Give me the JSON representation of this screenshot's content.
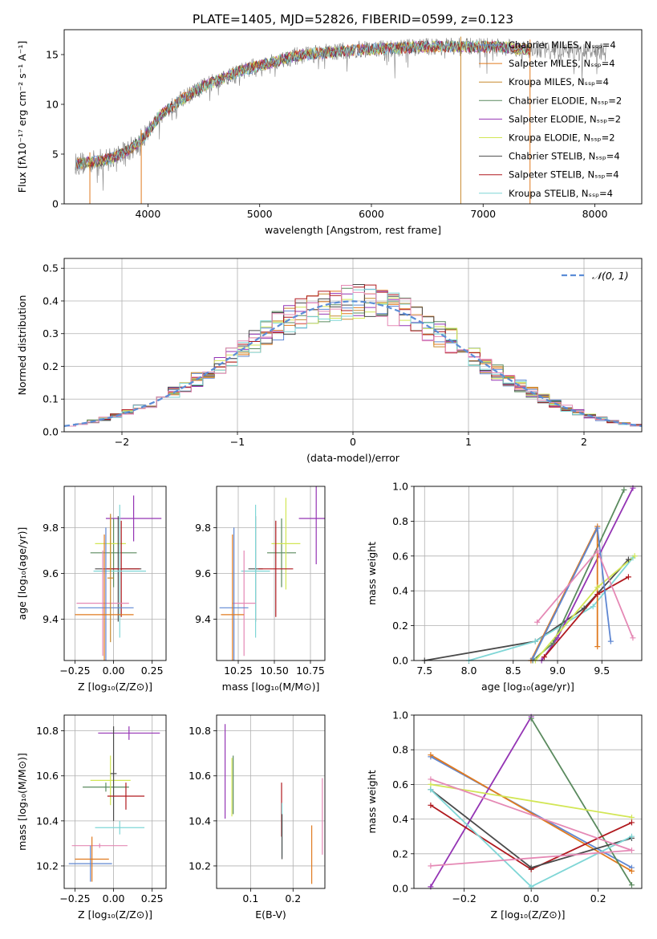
{
  "title": "PLATE=1405, MJD=52826, FIBERID=0599, z=0.123",
  "model_colors": {
    "chabrier_miles": "#5f87d2",
    "salpeter_miles": "#e07a1f",
    "kroupa_miles": "#c88a2e",
    "chabrier_elodie": "#5a8a5e",
    "salpeter_elodie": "#9434b4",
    "kroupa_elodie": "#d2e655",
    "chabrier_stelib": "#4a4a4a",
    "salpeter_stelib": "#b0191e",
    "kroupa_stelib": "#7fd6d6",
    "extra_pink": "#e589b5",
    "data_gray": "#808080"
  },
  "chart_data": [
    {
      "id": "spectrum",
      "type": "line",
      "xlabel": "wavelength [Angstrom, rest frame]",
      "ylabel": "Flux [fλ10⁻¹⁷ erg cm⁻² s⁻¹ A⁻¹]",
      "xlim": [
        3250,
        8420
      ],
      "ylim": [
        0,
        17.5
      ],
      "xticks": [
        4000,
        5000,
        6000,
        7000,
        8000
      ],
      "yticks": [
        0,
        5,
        10,
        15
      ],
      "grid": false,
      "legend_placement": "upper-right",
      "legend": [
        "Chabrier MILES, Nₛₛₚ=4",
        "Salpeter MILES, Nₛₛₚ=4",
        "Kroupa MILES, Nₛₛₚ=4",
        "Chabrier ELODIE, Nₛₛₚ=2",
        "Salpeter ELODIE, Nₛₛₚ=2",
        "Kroupa ELODIE, Nₛₛₚ=2",
        "Chabrier STELIB, Nₛₛₚ=4",
        "Salpeter STELIB, Nₛₛₚ=4",
        "Kroupa STELIB, Nₛₛₚ=4"
      ],
      "continuum": [
        [
          3350,
          4.0
        ],
        [
          3500,
          4.2
        ],
        [
          3650,
          4.5
        ],
        [
          3800,
          5.2
        ],
        [
          3950,
          6.5
        ],
        [
          4100,
          8.8
        ],
        [
          4300,
          10.5
        ],
        [
          4500,
          11.8
        ],
        [
          4700,
          12.8
        ],
        [
          4900,
          13.6
        ],
        [
          5100,
          14.2
        ],
        [
          5300,
          14.8
        ],
        [
          5500,
          15.1
        ],
        [
          5700,
          15.3
        ],
        [
          5900,
          15.5
        ],
        [
          6100,
          15.6
        ],
        [
          6300,
          15.7
        ],
        [
          6500,
          15.8
        ],
        [
          6700,
          15.8
        ],
        [
          6900,
          15.8
        ],
        [
          7100,
          15.8
        ],
        [
          7300,
          15.6
        ],
        [
          7420,
          15.5
        ]
      ],
      "data_extent": [
        3350,
        8100
      ],
      "spikes": [
        3480,
        3940,
        6800,
        7420
      ]
    },
    {
      "id": "residuals",
      "type": "step-histogram",
      "xlabel": "(data-model)/error",
      "ylabel": "Normed distribution",
      "xlim": [
        -2.5,
        2.5
      ],
      "ylim": [
        0,
        0.53
      ],
      "xticks": [
        -2,
        -1,
        0,
        1,
        2
      ],
      "yticks": [
        0.0,
        0.1,
        0.2,
        0.3,
        0.4,
        0.5
      ],
      "grid": true,
      "legend_placement": "upper-right",
      "legend": [
        "𝒩(0, 1)"
      ],
      "bin_width": 0.1,
      "bin_start": -2.5,
      "num_bins": 50,
      "series_colors": [
        "#5f87d2",
        "#e07a1f",
        "#c88a2e",
        "#5a8a5e",
        "#9434b4",
        "#d2e655",
        "#4a4a4a",
        "#b0191e",
        "#7fd6d6",
        "#e589b5"
      ]
    },
    {
      "id": "age_vs_z",
      "type": "errorbar",
      "xlabel": "Z [log₁₀(Z/Z⊙)]",
      "ylabel": "age  [log₁₀(age/yr)]",
      "xlim": [
        -0.32,
        0.34
      ],
      "ylim": [
        9.22,
        9.98
      ],
      "xticks": [
        -0.25,
        0.0,
        0.25
      ],
      "yticks": [
        9.4,
        9.6,
        9.8
      ],
      "grid": true,
      "points": [
        {
          "c": "#9434b4",
          "x": 0.13,
          "xerr": 0.18,
          "y": 9.84,
          "yerr": 0.1
        },
        {
          "c": "#5a8a5e",
          "x": 0.0,
          "xerr": 0.15,
          "y": 9.69,
          "yerr": 0.15
        },
        {
          "c": "#d2e655",
          "x": -0.02,
          "xerr": 0.1,
          "y": 9.73,
          "yerr": 0.12
        },
        {
          "c": "#4a4a4a",
          "x": 0.03,
          "xerr": 0.15,
          "y": 9.62,
          "yerr": 0.23
        },
        {
          "c": "#b0191e",
          "x": 0.05,
          "xerr": 0.12,
          "y": 9.62,
          "yerr": 0.21
        },
        {
          "c": "#7fd6d6",
          "x": 0.04,
          "xerr": 0.17,
          "y": 9.61,
          "yerr": 0.29
        },
        {
          "c": "#e589b5",
          "x": -0.07,
          "xerr": 0.17,
          "y": 9.47,
          "yerr": 0.23
        },
        {
          "c": "#5f87d2",
          "x": -0.05,
          "xerr": 0.18,
          "y": 9.45,
          "yerr": 0.35
        },
        {
          "c": "#e07a1f",
          "x": -0.06,
          "xerr": 0.19,
          "y": 9.42,
          "yerr": 0.35
        },
        {
          "c": "#c88a2e",
          "x": -0.02,
          "xerr": 0.02,
          "y": 9.58,
          "yerr": 0.28
        }
      ]
    },
    {
      "id": "age_vs_mass",
      "type": "errorbar",
      "xlabel": "mass [log₁₀(M/M⊙)]",
      "ylabel": "",
      "xlim": [
        10.1,
        10.85
      ],
      "ylim": [
        9.22,
        9.98
      ],
      "xticks": [
        10.25,
        10.5,
        10.75
      ],
      "yticks": [
        9.4,
        9.6,
        9.8
      ],
      "grid": true,
      "points": [
        {
          "c": "#9434b4",
          "x": 10.79,
          "xerr": 0.12,
          "y": 9.84,
          "yerr": 0.2
        },
        {
          "c": "#5a8a5e",
          "x": 10.55,
          "xerr": 0.1,
          "y": 9.69,
          "yerr": 0.15
        },
        {
          "c": "#d2e655",
          "x": 10.58,
          "xerr": 0.1,
          "y": 9.73,
          "yerr": 0.2
        },
        {
          "c": "#4a4a4a",
          "x": 10.37,
          "xerr": 0.05,
          "y": 9.62,
          "yerr": 0.23
        },
        {
          "c": "#b0191e",
          "x": 10.51,
          "xerr": 0.12,
          "y": 9.62,
          "yerr": 0.21
        },
        {
          "c": "#7fd6d6",
          "x": 10.37,
          "xerr": 0.1,
          "y": 9.61,
          "yerr": 0.29
        },
        {
          "c": "#e589b5",
          "x": 10.29,
          "xerr": 0.08,
          "y": 9.47,
          "yerr": 0.23
        },
        {
          "c": "#5f87d2",
          "x": 10.22,
          "xerr": 0.1,
          "y": 9.45,
          "yerr": 0.35
        },
        {
          "c": "#e07a1f",
          "x": 10.21,
          "xerr": 0.08,
          "y": 9.42,
          "yerr": 0.35
        }
      ]
    },
    {
      "id": "mass_weight_vs_age",
      "type": "line",
      "xlabel": "age  [log₁₀(age/yr)]",
      "ylabel": "mass weight",
      "xlim": [
        7.38,
        9.95
      ],
      "ylim": [
        0,
        1.0
      ],
      "xticks": [
        7.5,
        8.0,
        8.5,
        9.0,
        9.5
      ],
      "yticks": [
        0.0,
        0.2,
        0.4,
        0.6,
        0.8,
        1.0
      ],
      "grid": true,
      "series": [
        {
          "c": "#4a4a4a",
          "pts": [
            [
              7.5,
              0.0
            ],
            [
              8.75,
              0.11
            ],
            [
              9.3,
              0.3
            ],
            [
              9.8,
              0.58
            ]
          ]
        },
        {
          "c": "#7fd6d6",
          "pts": [
            [
              8.0,
              0.0
            ],
            [
              8.75,
              0.11
            ],
            [
              9.4,
              0.31
            ],
            [
              9.85,
              0.59
            ]
          ]
        },
        {
          "c": "#5a8a5e",
          "pts": [
            [
              8.72,
              0.0
            ],
            [
              8.95,
              0.1
            ],
            [
              9.75,
              0.98
            ]
          ]
        },
        {
          "c": "#9434b4",
          "pts": [
            [
              8.82,
              0.0
            ],
            [
              9.0,
              0.13
            ],
            [
              9.85,
              0.99
            ]
          ]
        },
        {
          "c": "#d2e655",
          "pts": [
            [
              8.75,
              0.0
            ],
            [
              9.45,
              0.42
            ],
            [
              9.87,
              0.6
            ]
          ]
        },
        {
          "c": "#b0191e",
          "pts": [
            [
              8.85,
              0.02
            ],
            [
              9.45,
              0.38
            ],
            [
              9.8,
              0.48
            ]
          ]
        },
        {
          "c": "#e07a1f",
          "pts": [
            [
              8.7,
              0.0
            ],
            [
              9.45,
              0.77
            ],
            [
              9.45,
              0.08
            ]
          ]
        },
        {
          "c": "#5f87d2",
          "pts": [
            [
              8.72,
              0.01
            ],
            [
              9.45,
              0.76
            ],
            [
              9.6,
              0.11
            ]
          ]
        },
        {
          "c": "#e589b5",
          "pts": [
            [
              8.77,
              0.22
            ],
            [
              9.45,
              0.63
            ],
            [
              9.85,
              0.13
            ]
          ]
        }
      ]
    },
    {
      "id": "mass_vs_z",
      "type": "errorbar",
      "xlabel": "Z [log₁₀(Z/Z⊙)]",
      "ylabel": "mass [log₁₀(M/M⊙)]",
      "xlim": [
        -0.32,
        0.34
      ],
      "ylim": [
        10.1,
        10.87
      ],
      "xticks": [
        -0.25,
        0.0,
        0.25
      ],
      "yticks": [
        10.2,
        10.4,
        10.6,
        10.8
      ],
      "grid": true,
      "points": [
        {
          "c": "#9434b4",
          "x": 0.1,
          "xerr": 0.2,
          "y": 10.79,
          "yerr": 0.03
        },
        {
          "c": "#5a8a5e",
          "x": -0.05,
          "xerr": 0.15,
          "y": 10.55,
          "yerr": 0.02
        },
        {
          "c": "#d2e655",
          "x": -0.02,
          "xerr": 0.13,
          "y": 10.58,
          "yerr": 0.11
        },
        {
          "c": "#4a4a4a",
          "x": 0.0,
          "xerr": 0.02,
          "y": 10.61,
          "yerr": 0.21
        },
        {
          "c": "#b0191e",
          "x": 0.08,
          "xerr": 0.12,
          "y": 10.51,
          "yerr": 0.06
        },
        {
          "c": "#7fd6d6",
          "x": 0.04,
          "xerr": 0.16,
          "y": 10.37,
          "yerr": 0.03
        },
        {
          "c": "#e589b5",
          "x": -0.09,
          "xerr": 0.18,
          "y": 10.29,
          "yerr": 0.01
        },
        {
          "c": "#5f87d2",
          "x": -0.15,
          "xerr": 0.14,
          "y": 10.21,
          "yerr": 0.08
        },
        {
          "c": "#e07a1f",
          "x": -0.14,
          "xerr": 0.11,
          "y": 10.23,
          "yerr": 0.1
        }
      ]
    },
    {
      "id": "mass_vs_ebv",
      "type": "errorbar",
      "xlabel": "E(B-V)",
      "ylabel": "",
      "xlim": [
        0.02,
        0.275
      ],
      "ylim": [
        10.1,
        10.87
      ],
      "xticks": [
        0.1,
        0.2
      ],
      "yticks": [
        10.2,
        10.4,
        10.6,
        10.8
      ],
      "grid": true,
      "points": [
        {
          "c": "#9434b4",
          "x": 0.04,
          "xerr": 0.0,
          "y": 10.62,
          "yerr": 0.21
        },
        {
          "c": "#d2e655",
          "x": 0.056,
          "xerr": 0.0,
          "y": 10.55,
          "yerr": 0.13
        },
        {
          "c": "#5a8a5e",
          "x": 0.059,
          "xerr": 0.0,
          "y": 10.56,
          "yerr": 0.13
        },
        {
          "c": "#b0191e",
          "x": 0.173,
          "xerr": 0.0,
          "y": 10.45,
          "yerr": 0.12
        },
        {
          "c": "#7fd6d6",
          "x": 0.174,
          "xerr": 0.0,
          "y": 10.36,
          "yerr": 0.12
        },
        {
          "c": "#4a4a4a",
          "x": 0.174,
          "xerr": 0.0,
          "y": 10.33,
          "yerr": 0.1
        },
        {
          "c": "#e07a1f",
          "x": 0.244,
          "xerr": 0.0,
          "y": 10.25,
          "yerr": 0.13
        },
        {
          "c": "#e589b5",
          "x": 0.269,
          "xerr": 0.0,
          "y": 10.42,
          "yerr": 0.17
        }
      ]
    },
    {
      "id": "mass_weight_vs_z",
      "type": "line",
      "xlabel": "Z [log₁₀(Z/Z⊙)]",
      "ylabel": "mass weight",
      "xlim": [
        -0.35,
        0.33
      ],
      "ylim": [
        0,
        1.0
      ],
      "xticks": [
        -0.2,
        0.0,
        0.2
      ],
      "yticks": [
        0.0,
        0.2,
        0.4,
        0.6,
        0.8,
        1.0
      ],
      "grid": true,
      "series": [
        {
          "c": "#5f87d2",
          "pts": [
            [
              -0.3,
              0.76
            ],
            [
              0.3,
              0.12
            ]
          ]
        },
        {
          "c": "#e07a1f",
          "pts": [
            [
              -0.3,
              0.77
            ],
            [
              0.3,
              0.1
            ]
          ]
        },
        {
          "c": "#9434b4",
          "pts": [
            [
              -0.3,
              0.01
            ],
            [
              0.0,
              0.99
            ]
          ]
        },
        {
          "c": "#5a8a5e",
          "pts": [
            [
              0.0,
              0.98
            ],
            [
              0.3,
              0.02
            ]
          ]
        },
        {
          "c": "#d2e655",
          "pts": [
            [
              -0.3,
              0.6
            ],
            [
              0.3,
              0.41
            ]
          ]
        },
        {
          "c": "#b0191e",
          "pts": [
            [
              -0.3,
              0.48
            ],
            [
              0.0,
              0.11
            ],
            [
              0.3,
              0.38
            ]
          ]
        },
        {
          "c": "#4a4a4a",
          "pts": [
            [
              -0.3,
              0.57
            ],
            [
              0.0,
              0.12
            ],
            [
              0.3,
              0.29
            ]
          ]
        },
        {
          "c": "#7fd6d6",
          "pts": [
            [
              -0.3,
              0.57
            ],
            [
              0.0,
              0.01
            ],
            [
              0.3,
              0.3
            ]
          ]
        },
        {
          "c": "#e589b5",
          "pts": [
            [
              -0.3,
              0.13
            ],
            [
              0.3,
              0.22
            ],
            [
              -0.3,
              0.63
            ]
          ]
        }
      ]
    }
  ]
}
